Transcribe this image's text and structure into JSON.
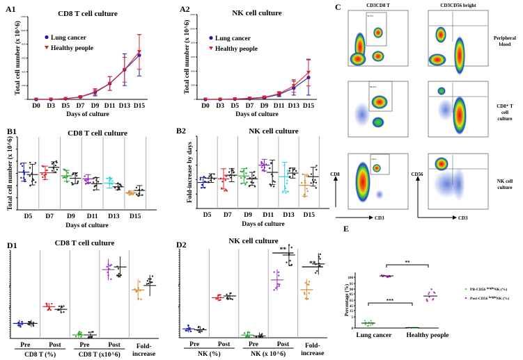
{
  "colors": {
    "lung": "#1a1aa8",
    "healthy": "#d8202c",
    "grid": "#b0b0b0"
  },
  "chart_data": [
    {
      "id": "A1",
      "type": "line",
      "panel": "A1",
      "title": "CD8 T cell culture",
      "xlabel": "Days of culture",
      "ylabel": "Total cell number (x 10^6)",
      "categories": [
        "D0",
        "D3",
        "D5",
        "D7",
        "D9",
        "D11",
        "D13",
        "D15"
      ],
      "ylim": [
        0,
        12000
      ],
      "series": [
        {
          "name": "Lung cancer",
          "color": "#1a1aa8",
          "marker": "circle",
          "values": [
            0,
            0,
            100,
            350,
            1000,
            2300,
            4300,
            6400
          ],
          "err": [
            0,
            0,
            50,
            100,
            500,
            1000,
            2300,
            3000
          ]
        },
        {
          "name": "Healthy people",
          "color": "#d8202c",
          "marker": "triangle-down",
          "values": [
            0,
            0,
            100,
            350,
            1100,
            2300,
            4300,
            6900
          ],
          "err": [
            0,
            0,
            50,
            100,
            450,
            1000,
            1800,
            2500
          ]
        }
      ]
    },
    {
      "id": "A2",
      "type": "line",
      "panel": "A2",
      "title": "NK cell culture",
      "xlabel": "Days of culture",
      "ylabel": "Total cell number (x 10^6)",
      "categories": [
        "D0",
        "D3",
        "D5",
        "D7",
        "D9",
        "D11",
        "D13",
        "D15"
      ],
      "ylim": [
        0,
        12000
      ],
      "series": [
        {
          "name": "Lung cancer",
          "color": "#1a1aa8",
          "marker": "circle",
          "values": [
            0,
            0,
            50,
            100,
            250,
            700,
            1600,
            3100
          ],
          "err": [
            0,
            0,
            20,
            50,
            100,
            300,
            1000,
            2500
          ]
        },
        {
          "name": "Healthy people",
          "color": "#d8202c",
          "marker": "triangle-down",
          "values": [
            0,
            0,
            50,
            150,
            300,
            800,
            1900,
            3800
          ],
          "err": [
            0,
            0,
            20,
            50,
            100,
            300,
            900,
            1900
          ]
        }
      ]
    },
    {
      "id": "B1",
      "type": "scatter",
      "panel": "B1",
      "title": "CD8 T cell culture",
      "xlabel": "Days of culture",
      "ylabel": "Total cell number (x 10^6)",
      "categories": [
        "D5",
        "D7",
        "D9",
        "D11",
        "D13",
        "D15"
      ],
      "ylim": [
        0,
        6
      ],
      "group_colors": [
        "#1a1aa8",
        "#d8202c",
        "#22a52a",
        "#8a1fc4",
        "#2fd4e0",
        "#d08a3a"
      ],
      "series": [
        {
          "name": "Lung cancer",
          "means": [
            3.1,
            3.05,
            2.8,
            2.55,
            2.2,
            1.4
          ],
          "sd": [
            0.75,
            0.55,
            0.45,
            0.35,
            0.4,
            0.15
          ]
        },
        {
          "name": "Healthy people",
          "means": [
            2.9,
            3.5,
            2.6,
            2.15,
            1.9,
            1.6
          ],
          "sd": [
            0.85,
            0.45,
            0.45,
            0.5,
            0.25,
            0.4
          ]
        }
      ]
    },
    {
      "id": "B2",
      "type": "scatter",
      "panel": "B2",
      "title": "NK cell culture",
      "xlabel": "Days of culture",
      "ylabel": "Fold-increase by days",
      "categories": [
        "D5",
        "D7",
        "D9",
        "D11",
        "D13",
        "D15"
      ],
      "ylim": [
        0,
        5
      ],
      "group_colors": [
        "#1a1aa8",
        "#d8202c",
        "#22a52a",
        "#8a1fc4",
        "#2fd4e0",
        "#d08a3a"
      ],
      "series": [
        {
          "name": "Lung cancer",
          "means": [
            1.8,
            2.05,
            2.25,
            3.0,
            2.2,
            1.6
          ],
          "sd": [
            0.35,
            0.7,
            0.5,
            0.4,
            1.0,
            0.75
          ]
        },
        {
          "name": "Healthy people",
          "means": [
            2.1,
            2.3,
            2.05,
            2.5,
            2.45,
            2.2
          ],
          "sd": [
            0.3,
            0.45,
            0.45,
            0.85,
            0.35,
            0.65
          ]
        }
      ]
    },
    {
      "id": "D1",
      "type": "scatter",
      "panel": "D1",
      "title": "CD8 T cell culture",
      "broken_axis": true,
      "categories": [
        "Pre",
        "Post",
        "Pre",
        "Post",
        "Fold-increase"
      ],
      "groups": [
        {
          "label": "CD8 T (%)",
          "span": [
            0,
            1
          ]
        },
        {
          "label": "CD8 T (x10^6)",
          "span": [
            2,
            3
          ]
        }
      ],
      "fold_label": [
        "Fold-",
        "increase"
      ],
      "group_colors": [
        "#1a1aa8",
        "#d8202c",
        "#22a52a",
        "#a030c8",
        "#e08a30"
      ],
      "levels_lung": [
        0.17,
        0.36,
        0.04,
        0.78,
        0.55
      ],
      "levels_healthy": [
        0.17,
        0.33,
        0.04,
        0.81,
        0.6
      ]
    },
    {
      "id": "D2",
      "type": "scatter",
      "panel": "D2",
      "title": "NK cell culture",
      "broken_axis": true,
      "categories": [
        "Pre",
        "Post",
        "Pre",
        "Post",
        "Fold-increase"
      ],
      "groups": [
        {
          "label": "NK (%)",
          "span": [
            0,
            1
          ]
        },
        {
          "label": "NK (x 10^6)",
          "span": [
            2,
            3
          ]
        }
      ],
      "fold_label": [
        "Fold-",
        "increase"
      ],
      "group_colors": [
        "#1a1aa8",
        "#d8202c",
        "#22a52a",
        "#a030c8",
        "#e08a30"
      ],
      "levels_lung": [
        0.1,
        0.45,
        0.03,
        0.65,
        0.54
      ],
      "levels_healthy": [
        0.09,
        0.47,
        0.02,
        0.93,
        0.83
      ],
      "significance": [
        "**",
        "**"
      ]
    },
    {
      "id": "E",
      "type": "scatter",
      "panel": "E",
      "ylabel": "Percentage (%)",
      "categories": [
        "Lung cancer",
        "Healthy people"
      ],
      "yticks": [
        "0",
        "5",
        "35",
        "45",
        "65",
        "85",
        "90",
        "95",
        "100"
      ],
      "series": [
        {
          "name": "PB-CD56 brightNK (%)",
          "color": "#4cd04c",
          "means": [
            1.5,
            0.2
          ]
        },
        {
          "name": "Post-CD56 brightNK (%)",
          "color": "#c020c0",
          "means": [
            97,
            75
          ]
        }
      ],
      "significance": [
        "***",
        "**"
      ]
    }
  ],
  "panel_c": {
    "label": "C",
    "columns": [
      "CD3CD8 T",
      "CD3CD56 bright"
    ],
    "rows": [
      [
        "Peripheral",
        "blood"
      ],
      [
        "CD8⁺ T",
        "cell",
        "culture"
      ],
      [
        "NK cell",
        "culture"
      ]
    ],
    "axis_left": [
      "CD8",
      "CD56"
    ],
    "axis_bottom": "CD3",
    "gate_percent_left": [
      "32.3%",
      "66.4%",
      "3.9%"
    ]
  },
  "legend_e": {
    "pb": "PB-CD56",
    "pb_sup": "bright",
    "pb_rest": "NK (%)",
    "post": "Post-CD56",
    "post_sup": "bright",
    "post_rest": "NK (%)"
  }
}
